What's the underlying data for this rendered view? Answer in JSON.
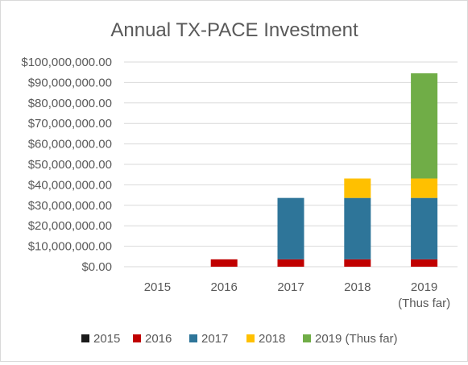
{
  "chart_data": {
    "type": "bar",
    "stacked": true,
    "title": "Annual TX-PACE Investment",
    "xlabel": "",
    "ylabel": "",
    "categories": [
      [
        "2015"
      ],
      [
        "2016"
      ],
      [
        "2017"
      ],
      [
        "2018"
      ],
      [
        "2019",
        "(Thus far)"
      ]
    ],
    "ylim": [
      0,
      100000000
    ],
    "ytick_step": 10000000,
    "ytick_labels": [
      "$0.00",
      "$10,000,000.00",
      "$20,000,000.00",
      "$30,000,000.00",
      "$40,000,000.00",
      "$50,000,000.00",
      "$60,000,000.00",
      "$70,000,000.00",
      "$80,000,000.00",
      "$90,000,000.00",
      "$100,000,000.00"
    ],
    "grid": true,
    "legend_position": "bottom",
    "series": [
      {
        "name": "2015",
        "color": "#1a1a1a",
        "values": [
          0,
          0,
          0,
          0,
          0
        ]
      },
      {
        "name": "2016",
        "color": "#c00000",
        "values": [
          0,
          3600000,
          3600000,
          3600000,
          3600000
        ]
      },
      {
        "name": "2017",
        "color": "#2e7599",
        "values": [
          0,
          0,
          30000000,
          30000000,
          30000000
        ]
      },
      {
        "name": "2018",
        "color": "#ffc000",
        "values": [
          0,
          0,
          0,
          9500000,
          9500000
        ]
      },
      {
        "name": "2019 (Thus far)",
        "color": "#70ad47",
        "values": [
          0,
          0,
          0,
          0,
          51400000
        ]
      }
    ]
  }
}
